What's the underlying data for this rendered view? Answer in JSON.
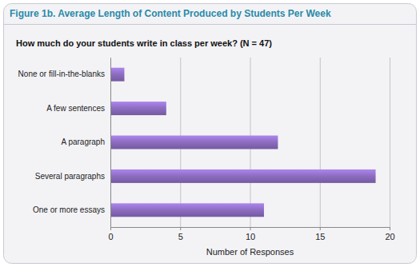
{
  "chart_data": {
    "type": "bar",
    "orientation": "horizontal",
    "title": "Figure 1b. Average Length of Content Produced by Students Per Week",
    "subtitle": "How much do your students write in class per week? (N = 47)",
    "categories": [
      "None or fill-in-the-blanks",
      "A few sentences",
      "A paragraph",
      "Several paragraphs",
      "One or more essays"
    ],
    "values": [
      1,
      4,
      12,
      19,
      11
    ],
    "color": "#8c6cc0",
    "x_label": "Number of Responses",
    "xlim": [
      0,
      20
    ],
    "xticks": [
      0,
      5,
      10,
      15,
      20
    ],
    "grid": true
  }
}
